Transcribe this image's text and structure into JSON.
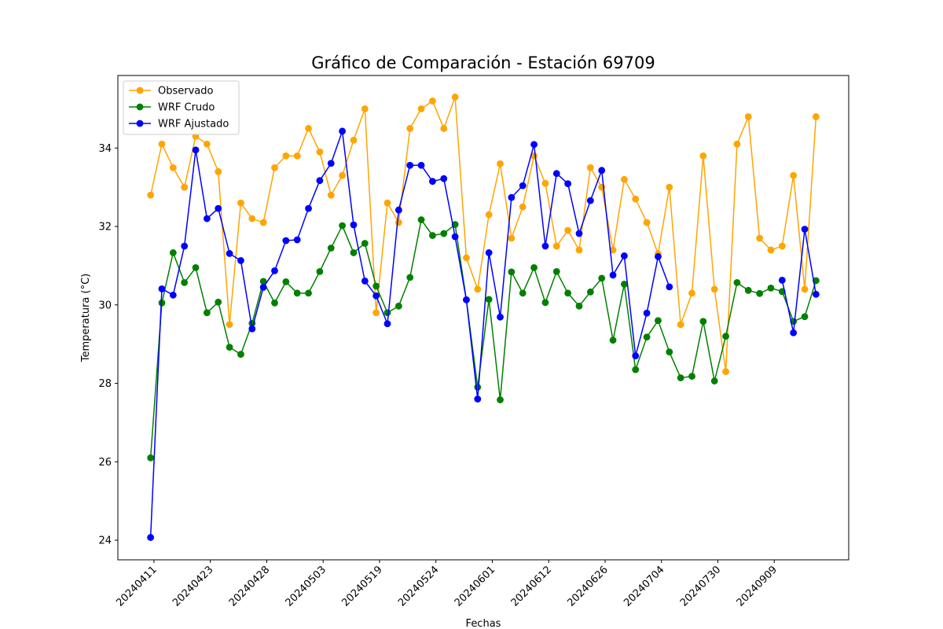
{
  "chart_data": {
    "type": "line",
    "title": "Gráfico de Comparación - Estación 69709",
    "xlabel": "Fechas",
    "ylabel": "Temperatura (°C)",
    "ylim": [
      23.5,
      35.85
    ],
    "yticks": [
      24,
      26,
      28,
      30,
      32,
      34
    ],
    "x_count": 60,
    "xlim": [
      -2.9,
      61.9
    ],
    "xticks": [
      {
        "index": 0.3,
        "label": "20240411"
      },
      {
        "index": 5.3,
        "label": "20240423"
      },
      {
        "index": 10.3,
        "label": "20240428"
      },
      {
        "index": 15.3,
        "label": "20240503"
      },
      {
        "index": 20.3,
        "label": "20240519"
      },
      {
        "index": 25.3,
        "label": "20240524"
      },
      {
        "index": 30.3,
        "label": "20240601"
      },
      {
        "index": 35.3,
        "label": "20240612"
      },
      {
        "index": 40.3,
        "label": "20240626"
      },
      {
        "index": 45.3,
        "label": "20240704"
      },
      {
        "index": 50.3,
        "label": "20240730"
      },
      {
        "index": 55.3,
        "label": "20240909"
      }
    ],
    "legend_position": "upper-left",
    "grid": false,
    "series": [
      {
        "name": "Observado",
        "color": "#ffa500",
        "values": [
          32.8,
          34.1,
          33.5,
          33.0,
          34.3,
          34.1,
          33.4,
          29.5,
          32.6,
          32.2,
          32.1,
          33.5,
          33.8,
          33.8,
          34.5,
          33.9,
          32.8,
          33.3,
          34.2,
          35.0,
          29.8,
          32.6,
          32.1,
          34.5,
          35.0,
          35.2,
          34.5,
          35.3,
          31.2,
          30.4,
          32.3,
          33.6,
          31.7,
          32.5,
          33.8,
          33.1,
          31.5,
          31.9,
          31.4,
          33.5,
          33.0,
          31.4,
          33.2,
          32.7,
          32.1,
          31.3,
          33.0,
          29.5,
          30.3,
          33.8,
          30.4,
          28.3,
          34.1,
          34.8,
          31.7,
          31.4,
          31.5,
          33.3,
          30.4,
          34.8
        ]
      },
      {
        "name": "WRF Crudo",
        "color": "#008000",
        "values": [
          26.1,
          30.05,
          31.33,
          30.57,
          30.95,
          29.8,
          30.07,
          28.92,
          28.74,
          29.53,
          30.6,
          30.05,
          30.59,
          30.3,
          30.3,
          30.85,
          31.45,
          32.02,
          31.33,
          31.57,
          30.48,
          29.8,
          29.97,
          30.7,
          32.17,
          31.77,
          31.82,
          32.05,
          30.13,
          27.9,
          30.14,
          27.58,
          30.84,
          30.3,
          30.95,
          30.06,
          30.85,
          30.3,
          29.97,
          30.33,
          30.68,
          29.1,
          30.53,
          28.35,
          29.18,
          29.6,
          28.8,
          28.14,
          28.18,
          29.58,
          28.06,
          29.2,
          30.57,
          30.37,
          30.29,
          30.43,
          30.34,
          29.58,
          29.7,
          30.62
        ]
      },
      {
        "name": "WRF Ajustado",
        "color": "#0000ff",
        "values": [
          24.07,
          30.41,
          30.25,
          31.5,
          33.95,
          32.2,
          32.46,
          31.31,
          31.13,
          29.39,
          30.45,
          30.87,
          31.64,
          31.66,
          32.46,
          33.17,
          33.61,
          34.43,
          32.04,
          30.61,
          30.23,
          29.52,
          32.42,
          33.56,
          33.56,
          33.15,
          33.22,
          31.74,
          30.13,
          27.6,
          31.33,
          29.69,
          32.74,
          33.04,
          34.09,
          31.5,
          33.35,
          33.09,
          31.82,
          32.66,
          33.43,
          30.76,
          31.25,
          28.7,
          29.79,
          31.23,
          30.46,
          null,
          null,
          null,
          null,
          null,
          null,
          null,
          null,
          null,
          30.63,
          29.29,
          31.93,
          30.27
        ]
      }
    ]
  }
}
